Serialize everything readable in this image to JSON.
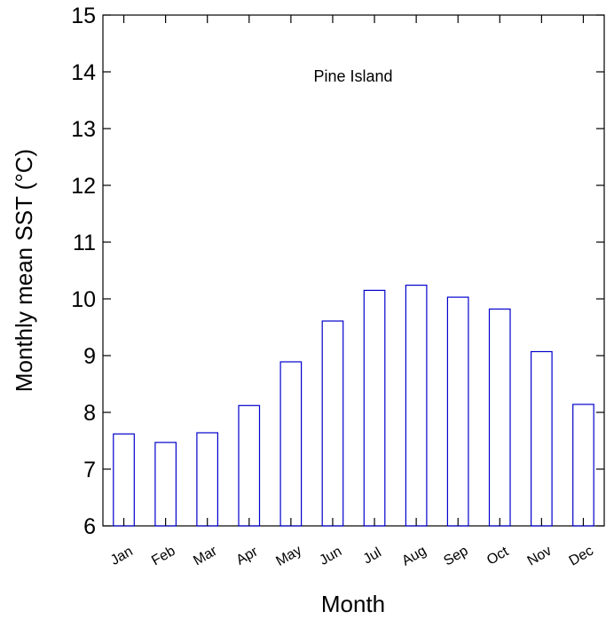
{
  "chart_data": {
    "type": "bar",
    "title": "",
    "annotation": "Pine Island",
    "xlabel": "Month",
    "ylabel": "Monthly mean SST (°C)",
    "ylim": [
      6,
      15
    ],
    "yticks": [
      "6",
      "7",
      "8",
      "9",
      "10",
      "11",
      "12",
      "13",
      "14",
      "15"
    ],
    "categories": [
      "Jan",
      "Feb",
      "Mar",
      "Apr",
      "May",
      "Jun",
      "Jul",
      "Aug",
      "Sep",
      "Oct",
      "Nov",
      "Dec"
    ],
    "values": [
      7.62,
      7.47,
      7.64,
      8.12,
      8.89,
      9.61,
      10.15,
      10.24,
      10.03,
      9.82,
      9.07,
      8.14
    ],
    "bar_color": "#0000cc",
    "grid": false,
    "baseline": 6
  }
}
